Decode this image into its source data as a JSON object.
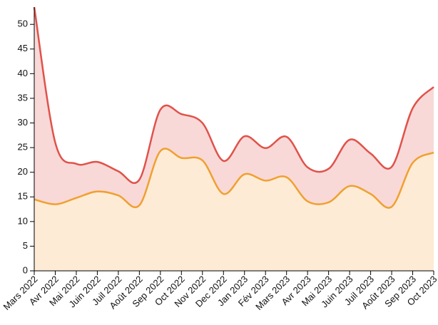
{
  "chart_data": {
    "type": "area",
    "categories": [
      "Mars 2022",
      "Avr 2022",
      "Mai 2022",
      "Juin 2022",
      "Juil 2022",
      "Août 2022",
      "Sep 2022",
      "Oct 2022",
      "Nov 2022",
      "Dec 2022",
      "Jan 2023",
      "Fév 2023",
      "Mars 2023",
      "Avr 2023",
      "Mai 2023",
      "Juin 2023",
      "Juil 2023",
      "Août 2023",
      "Sep 2023",
      "Oct 2023"
    ],
    "series": [
      {
        "color": "#e0524a",
        "fill": "#f8d9d8",
        "values": [
          53.5,
          26,
          21.7,
          22.1,
          20.2,
          18.5,
          32.7,
          31.8,
          30,
          22.3,
          27.3,
          24.9,
          27.2,
          21,
          20.7,
          26.6,
          23.8,
          21.1,
          33,
          37.3
        ]
      },
      {
        "color": "#f0a030",
        "fill": "#fdebd5",
        "values": [
          14.5,
          13.5,
          14.8,
          16.1,
          15.3,
          13.3,
          24.3,
          22.9,
          22.4,
          15.6,
          19.6,
          18.3,
          19,
          14.1,
          13.9,
          17.2,
          15.6,
          13,
          21.9,
          24
        ]
      }
    ],
    "ylim": [
      0,
      53.5
    ],
    "yticks": [
      0,
      5,
      10,
      15,
      20,
      25,
      30,
      35,
      40,
      45,
      50
    ]
  }
}
